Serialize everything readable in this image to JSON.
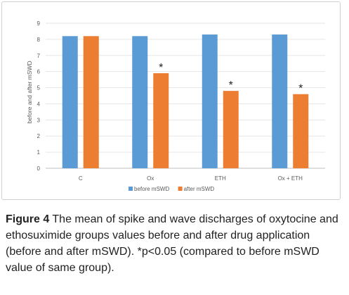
{
  "chart_data": {
    "type": "bar",
    "categories": [
      "C",
      "Ox",
      "ETH",
      "Ox + ETH"
    ],
    "series": [
      {
        "name": "before mSWD",
        "values": [
          8.2,
          8.2,
          8.3,
          8.3
        ],
        "color": "#5b9bd5"
      },
      {
        "name": "after mSWD",
        "values": [
          8.2,
          5.9,
          4.8,
          4.6
        ],
        "color": "#ed7d31"
      }
    ],
    "annotations": [
      "",
      "*",
      "*",
      "*"
    ],
    "ylabel": "before and after mSWD",
    "xlabel": "",
    "ylim": [
      0,
      9
    ],
    "yticks": [
      0,
      1,
      2,
      3,
      4,
      5,
      6,
      7,
      8,
      9
    ],
    "grid": true,
    "legend_position": "bottom"
  },
  "caption": {
    "label": "Figure 4",
    "text": " The mean of spike and wave discharges of oxytocine and ethosuximide groups values before and after drug application (before and after mSWD). *p<0.05 (compared to before mSWD value of same group)."
  }
}
